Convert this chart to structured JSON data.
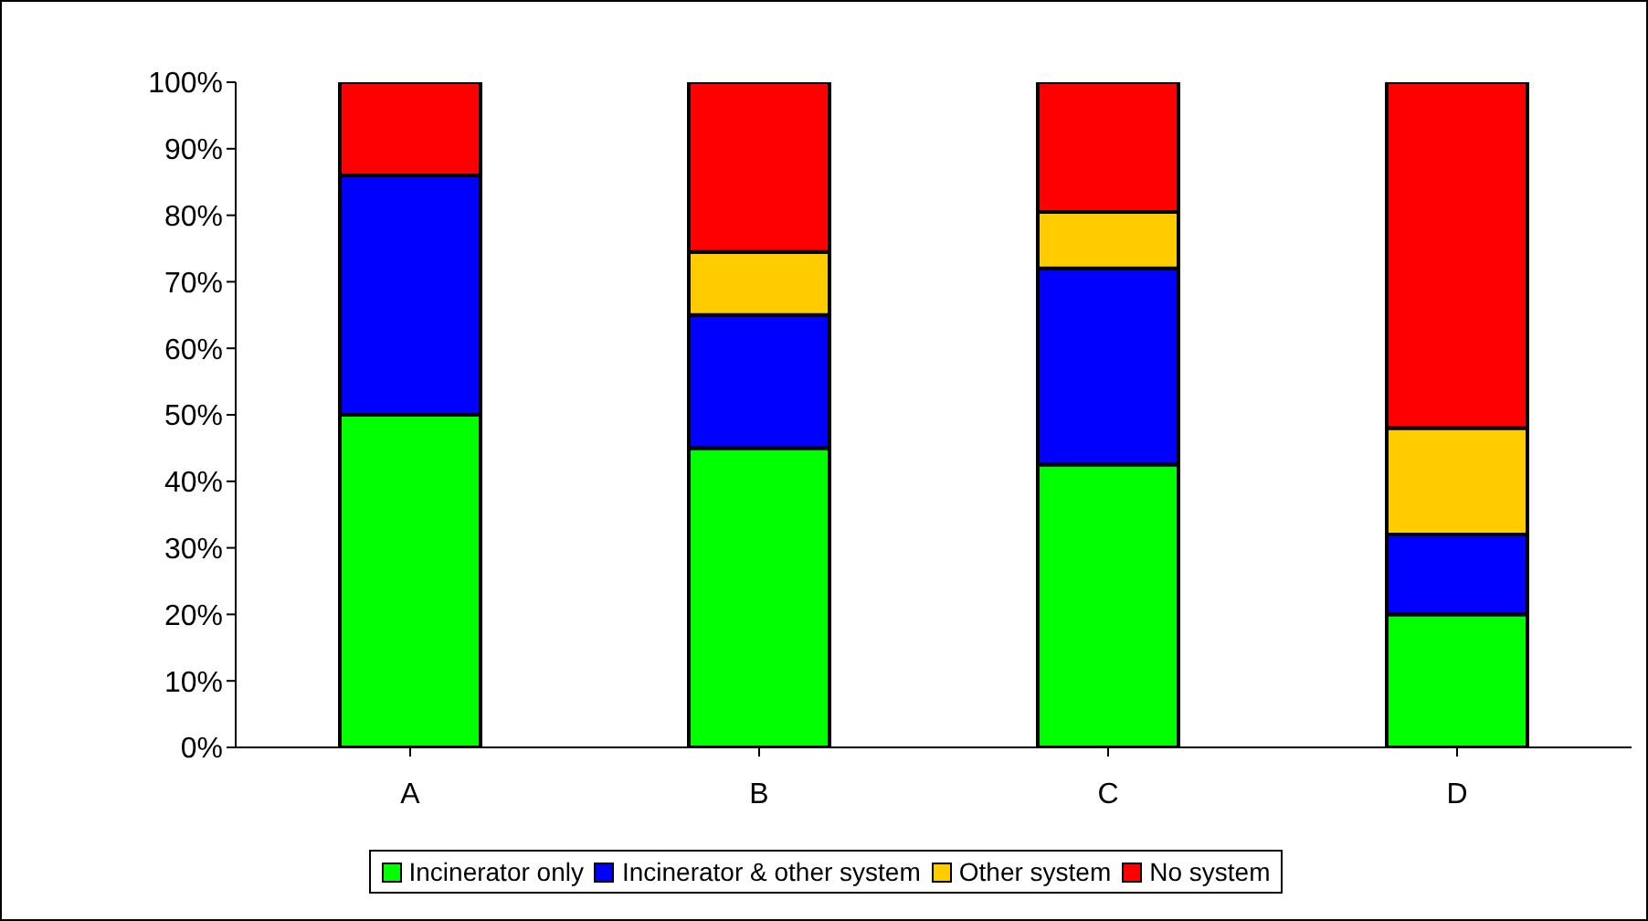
{
  "chart_data": {
    "type": "bar",
    "stacked": true,
    "categories": [
      "A",
      "B",
      "C",
      "D"
    ],
    "series": [
      {
        "name": "Incinerator only",
        "color": "#00ff00",
        "values": [
          50,
          45,
          42.5,
          20
        ]
      },
      {
        "name": "Incinerator & other system",
        "color": "#0000ff",
        "values": [
          36,
          20,
          29.5,
          12
        ]
      },
      {
        "name": "Other system",
        "color": "#ffcc00",
        "values": [
          0,
          9.5,
          8.5,
          16
        ]
      },
      {
        "name": "No system",
        "color": "#ff0000",
        "values": [
          14,
          25.5,
          19.5,
          52
        ]
      }
    ],
    "ylim": [
      0,
      100
    ],
    "yticks": [
      {
        "value": 0,
        "label": "0%"
      },
      {
        "value": 10,
        "label": "10%"
      },
      {
        "value": 20,
        "label": "20%"
      },
      {
        "value": 30,
        "label": "30%"
      },
      {
        "value": 40,
        "label": "40%"
      },
      {
        "value": 50,
        "label": "50%"
      },
      {
        "value": 60,
        "label": "60%"
      },
      {
        "value": 70,
        "label": "70%"
      },
      {
        "value": 80,
        "label": "80%"
      },
      {
        "value": 90,
        "label": "90%"
      },
      {
        "value": 100,
        "label": "100%"
      }
    ],
    "grid": false,
    "legend": "bottom"
  }
}
